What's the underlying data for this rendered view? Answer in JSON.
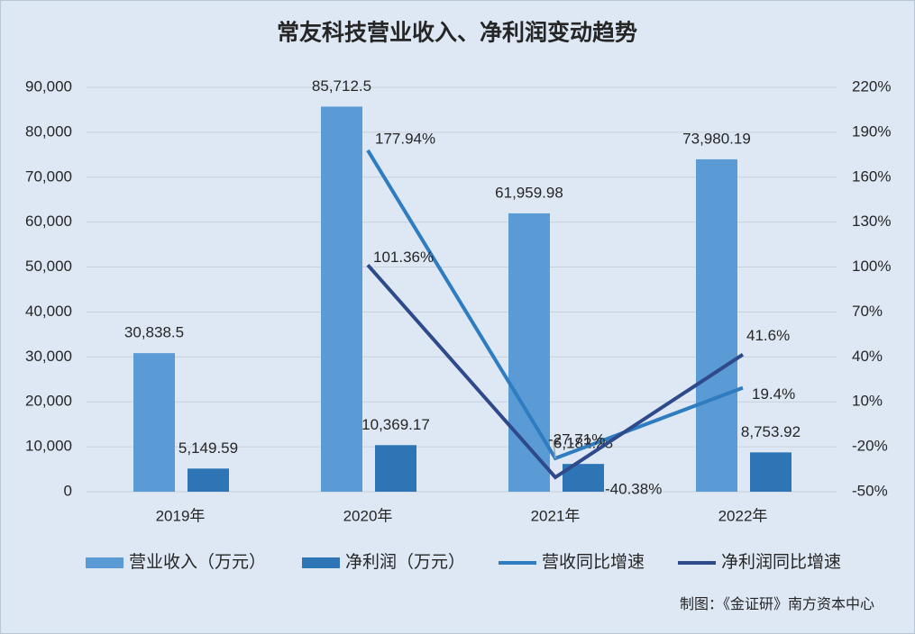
{
  "chart_data": {
    "type": "bar-line",
    "title": "常友科技营业收入、净利润变动趋势",
    "source": "制图：《金证研》南方资本中心",
    "categories": [
      "2019年",
      "2020年",
      "2021年",
      "2022年"
    ],
    "ylim": [
      0,
      90000
    ],
    "yticks": [
      0,
      {
        "value": 10000,
        "label": "10,000"
      },
      {
        "value": 20000,
        "label": "20,000"
      },
      {
        "value": 30000,
        "label": "30,000"
      },
      {
        "value": 40000,
        "label": "40,000"
      },
      {
        "value": 50000,
        "label": "50,000"
      },
      {
        "value": 60000,
        "label": "60,000"
      },
      {
        "value": 70000,
        "label": "70,000"
      },
      {
        "value": 80000,
        "label": "80,000"
      },
      {
        "value": 90000,
        "label": "90,000"
      }
    ],
    "y2lim": [
      -50,
      220
    ],
    "y2ticks": [
      {
        "value": -50,
        "label": "-50%"
      },
      {
        "value": -20,
        "label": "-20%"
      },
      {
        "value": 10,
        "label": "10%"
      },
      {
        "value": 40,
        "label": "40%"
      },
      {
        "value": 70,
        "label": "70%"
      },
      {
        "value": 100,
        "label": "100%"
      },
      {
        "value": 130,
        "label": "130%"
      },
      {
        "value": 160,
        "label": "160%"
      },
      {
        "value": 190,
        "label": "190%"
      },
      {
        "value": 220,
        "label": "220%"
      }
    ],
    "grid": true,
    "series": [
      {
        "name": "营业收入（万元）",
        "type": "bar",
        "color": "#5b9bd5",
        "values": [
          30838.5,
          85712.5,
          61959.98,
          73980.19
        ],
        "value_labels": [
          "30,838.5",
          "85,712.5",
          "61,959.98",
          "73,980.19"
        ]
      },
      {
        "name": "净利润（万元）",
        "type": "bar",
        "color": "#2e75b6",
        "values": [
          5149.59,
          10369.17,
          6182.28,
          8753.92
        ],
        "value_labels": [
          "5,149.59",
          "10,369.17",
          "6,182.28",
          "8,753.92"
        ]
      },
      {
        "name": "营收同比增速",
        "type": "line",
        "axis": "y2",
        "color": "#2f7cc0",
        "values": [
          null,
          177.94,
          -27.71,
          19.4
        ],
        "value_labels": [
          null,
          "177.94%",
          "-27.71%",
          "19.4%"
        ]
      },
      {
        "name": "净利润同比增速",
        "type": "line",
        "axis": "y2",
        "color": "#2e4a8a",
        "values": [
          null,
          101.36,
          -40.38,
          41.6
        ],
        "value_labels": [
          null,
          "101.36%",
          "-40.38%",
          "41.6%"
        ]
      }
    ]
  }
}
